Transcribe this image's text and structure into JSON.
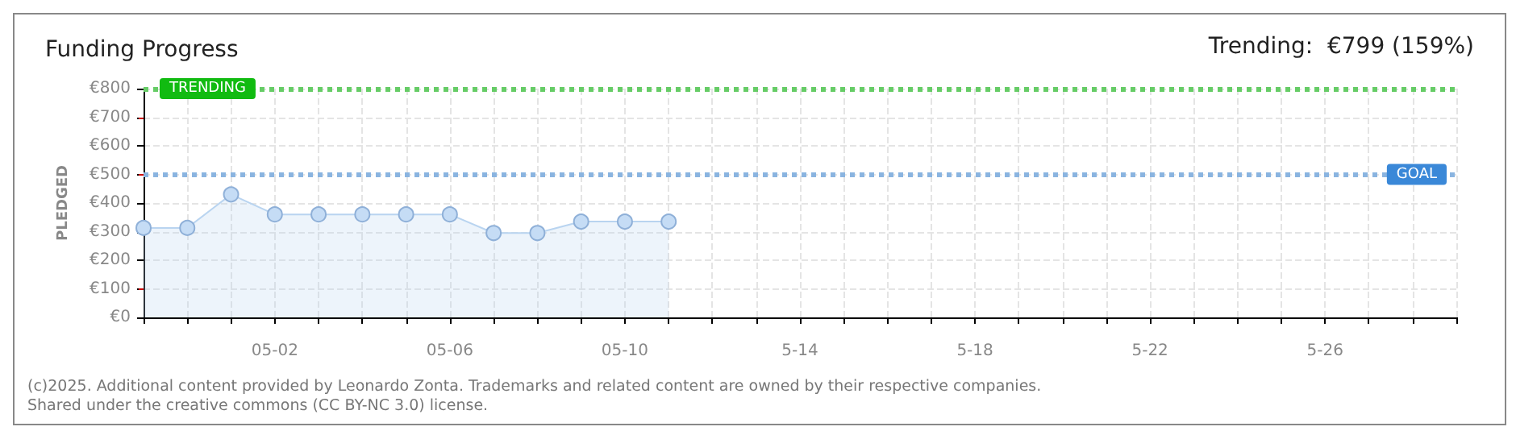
{
  "chart_data": {
    "type": "area",
    "title": "Funding Progress",
    "subtitle": "Trending:  €799 (159%)",
    "ylabel": "PLEDGED",
    "x": [
      "--04-29",
      "--04-30",
      "--05-01",
      "--05-02",
      "--05-03",
      "--05-04",
      "--05-05",
      "--05-06",
      "--05-07",
      "--05-08",
      "--05-09",
      "--05-10",
      "--05-11"
    ],
    "series": [
      {
        "color": "#b9d4f0",
        "values": [
          313,
          313,
          430,
          360,
          360,
          360,
          360,
          360,
          295,
          295,
          335,
          335,
          335
        ]
      }
    ],
    "xlim": [
      "--04-29",
      "--05-29"
    ],
    "xticks": [
      {
        "value": "--04-29",
        "label": null
      },
      {
        "value": "--04-30",
        "label": null
      },
      {
        "value": "--05-01",
        "label": null
      },
      {
        "value": "--05-02",
        "label": "05-02"
      },
      {
        "value": "--05-03",
        "label": null
      },
      {
        "value": "--05-04",
        "label": null
      },
      {
        "value": "--05-05",
        "label": null
      },
      {
        "value": "--05-06",
        "label": "05-06"
      },
      {
        "value": "--05-07",
        "label": null
      },
      {
        "value": "--05-08",
        "label": null
      },
      {
        "value": "--05-09",
        "label": null
      },
      {
        "value": "--05-10",
        "label": "05-10"
      },
      {
        "value": "--05-11",
        "label": null
      },
      {
        "value": "--05-12",
        "label": null
      },
      {
        "value": "--05-13",
        "label": null
      },
      {
        "value": "--05-14",
        "label": "5-14"
      },
      {
        "value": "--05-15",
        "label": null
      },
      {
        "value": "--05-16",
        "label": null
      },
      {
        "value": "--05-17",
        "label": null
      },
      {
        "value": "--05-18",
        "label": "5-18"
      },
      {
        "value": "--05-19",
        "label": null
      },
      {
        "value": "--05-20",
        "label": null
      },
      {
        "value": "--05-21",
        "label": null
      },
      {
        "value": "--05-22",
        "label": "5-22"
      },
      {
        "value": "--05-23",
        "label": null
      },
      {
        "value": "--05-24",
        "label": null
      },
      {
        "value": "--05-25",
        "label": null
      },
      {
        "value": "--05-26",
        "label": "5-26"
      },
      {
        "value": "--05-27",
        "label": null
      },
      {
        "value": "--05-28",
        "label": null
      },
      {
        "value": "--05-29",
        "label": null
      }
    ],
    "ylim": [
      0,
      800
    ],
    "yticks": [
      {
        "value": 0,
        "label": "€0"
      },
      {
        "value": 100,
        "label": "€100"
      },
      {
        "value": 200,
        "label": "€200"
      },
      {
        "value": 300,
        "label": "€300"
      },
      {
        "value": 400,
        "label": "€400"
      },
      {
        "value": 500,
        "label": "€500"
      },
      {
        "value": 600,
        "label": "€600"
      },
      {
        "value": 700,
        "label": "€700"
      },
      {
        "value": 800,
        "label": "€800"
      }
    ],
    "ref_lines": [
      {
        "axis": "y",
        "value": 800,
        "label": "TRENDING",
        "color": "#66cc66",
        "line_style": "dotted"
      },
      {
        "axis": "y",
        "value": 500,
        "label": "GOAL",
        "color": "#8ab4e0",
        "line_style": "dotted"
      }
    ],
    "grid": true,
    "marker": "circle",
    "annotations": [
      "(c)2025. Additional content provided by Leonardo Zonta. Trademarks and related content are owned by their respective companies.",
      "Shared under the creative commons (CC BY-NC 3.0) license."
    ]
  }
}
